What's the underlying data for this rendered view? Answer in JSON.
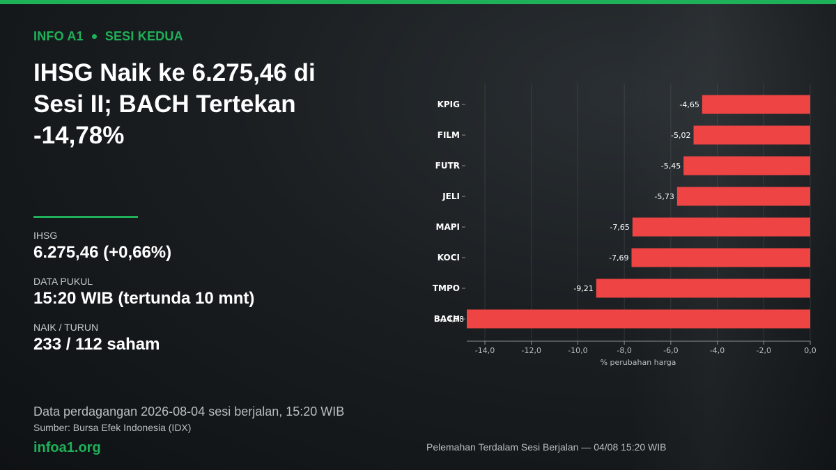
{
  "kicker": {
    "brand": "INFO A1",
    "section": "SESI KEDUA"
  },
  "headline": "IHSG Naik ke 6.275,46 di Sesi II; BACH Tertekan -14,78%",
  "stats": [
    {
      "label": "IHSG",
      "value": "6.275,46  (+0,66%)"
    },
    {
      "label": "DATA PUKUL",
      "value": "15:20 WIB (tertunda 10 mnt)"
    },
    {
      "label": "NAIK / TURUN",
      "value": "233 / 112 saham"
    }
  ],
  "footnote": "Data perdagangan 2026-08-04 sesi berjalan, 15:20 WIB",
  "source": "Sumber: Bursa Efek Indonesia (IDX)",
  "brand_url": "infoa1.org",
  "colors": {
    "accent": "#1fb15a",
    "bar": "#ef4444"
  },
  "chart_data": {
    "type": "bar",
    "orientation": "horizontal",
    "caption": "Pelemahan Terdalam Sesi Berjalan — 04/08 15:20 WIB",
    "xlabel": "% perubahan harga",
    "xlim": [
      -14.78,
      0
    ],
    "xticks": [
      -14,
      -12,
      -10,
      -8,
      -6,
      -4,
      -2,
      0
    ],
    "xtick_labels": [
      "-14,0",
      "-12,0",
      "-10,0",
      "-8,0",
      "-6,0",
      "-4,0",
      "-2,0",
      "0,0"
    ],
    "grid": true,
    "categories": [
      "KPIG",
      "FILM",
      "FUTR",
      "JELI",
      "MAPI",
      "KOCI",
      "TMPO",
      "BACH"
    ],
    "values": [
      -4.65,
      -5.02,
      -5.45,
      -5.73,
      -7.65,
      -7.69,
      -9.21,
      -14.78
    ],
    "value_labels": [
      "-4,65",
      "-5,02",
      "-5,45",
      "-5,73",
      "-7,65",
      "-7,69",
      "-9,21",
      "-14,78"
    ]
  }
}
